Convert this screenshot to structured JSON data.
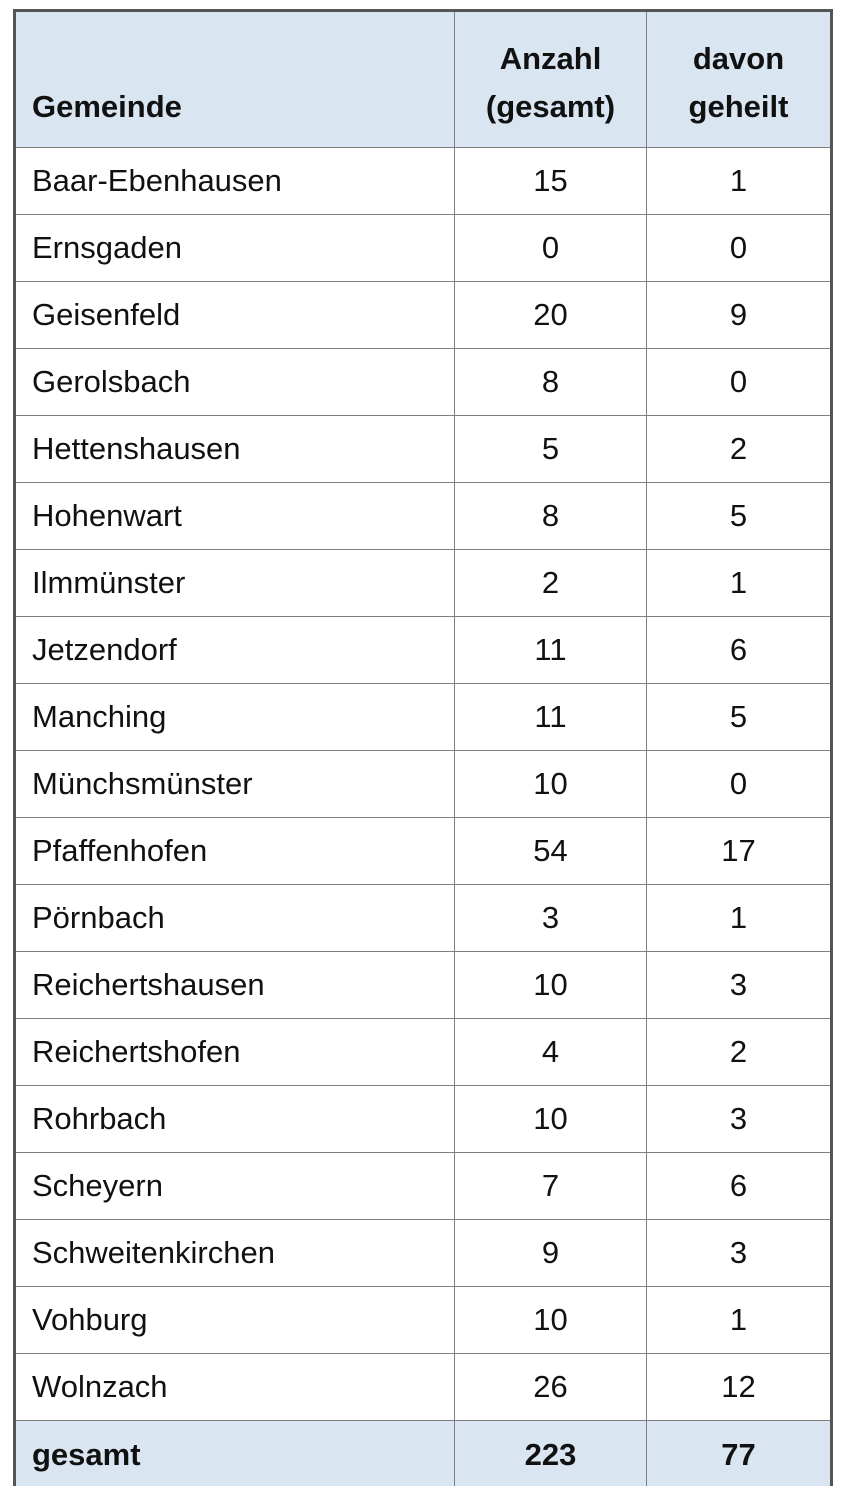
{
  "table": {
    "header": {
      "col1": "Gemeinde",
      "col2_line1": "Anzahl",
      "col2_line2": "(gesamt)",
      "col3_line1": "davon",
      "col3_line2": "geheilt"
    },
    "rows": [
      {
        "gemeinde": "Baar-Ebenhausen",
        "anzahl_gesamt": "15",
        "davon_geheilt": "1"
      },
      {
        "gemeinde": "Ernsgaden",
        "anzahl_gesamt": "0",
        "davon_geheilt": "0"
      },
      {
        "gemeinde": "Geisenfeld",
        "anzahl_gesamt": "20",
        "davon_geheilt": "9"
      },
      {
        "gemeinde": "Gerolsbach",
        "anzahl_gesamt": "8",
        "davon_geheilt": "0"
      },
      {
        "gemeinde": "Hettenshausen",
        "anzahl_gesamt": "5",
        "davon_geheilt": "2"
      },
      {
        "gemeinde": "Hohenwart",
        "anzahl_gesamt": "8",
        "davon_geheilt": "5"
      },
      {
        "gemeinde": "Ilmmünster",
        "anzahl_gesamt": "2",
        "davon_geheilt": "1"
      },
      {
        "gemeinde": "Jetzendorf",
        "anzahl_gesamt": "11",
        "davon_geheilt": "6"
      },
      {
        "gemeinde": "Manching",
        "anzahl_gesamt": "11",
        "davon_geheilt": "5"
      },
      {
        "gemeinde": "Münchsmünster",
        "anzahl_gesamt": "10",
        "davon_geheilt": "0"
      },
      {
        "gemeinde": "Pfaffenhofen",
        "anzahl_gesamt": "54",
        "davon_geheilt": "17"
      },
      {
        "gemeinde": "Pörnbach",
        "anzahl_gesamt": "3",
        "davon_geheilt": "1"
      },
      {
        "gemeinde": "Reichertshausen",
        "anzahl_gesamt": "10",
        "davon_geheilt": "3"
      },
      {
        "gemeinde": "Reichertshofen",
        "anzahl_gesamt": "4",
        "davon_geheilt": "2"
      },
      {
        "gemeinde": "Rohrbach",
        "anzahl_gesamt": "10",
        "davon_geheilt": "3"
      },
      {
        "gemeinde": "Scheyern",
        "anzahl_gesamt": "7",
        "davon_geheilt": "6"
      },
      {
        "gemeinde": "Schweitenkirchen",
        "anzahl_gesamt": "9",
        "davon_geheilt": "3"
      },
      {
        "gemeinde": "Vohburg",
        "anzahl_gesamt": "10",
        "davon_geheilt": "1"
      },
      {
        "gemeinde": "Wolnzach",
        "anzahl_gesamt": "26",
        "davon_geheilt": "12"
      }
    ],
    "footer": {
      "label": "gesamt",
      "anzahl_gesamt": "223",
      "davon_geheilt": "77"
    },
    "colors": {
      "header_bg": "#d9e5f1",
      "footer_bg": "#d9e5f1",
      "outer_border": "#555555",
      "inner_border": "#7f7f7f",
      "text": "#111111",
      "body_bg": "#ffffff"
    }
  },
  "chart_data": {
    "type": "table",
    "title": "",
    "columns": [
      "Gemeinde",
      "Anzahl (gesamt)",
      "davon geheilt"
    ],
    "categories": [
      "Baar-Ebenhausen",
      "Ernsgaden",
      "Geisenfeld",
      "Gerolsbach",
      "Hettenshausen",
      "Hohenwart",
      "Ilmmünster",
      "Jetzendorf",
      "Manching",
      "Münchsmünster",
      "Pfaffenhofen",
      "Pörnbach",
      "Reichertshausen",
      "Reichertshofen",
      "Rohrbach",
      "Scheyern",
      "Schweitenkirchen",
      "Vohburg",
      "Wolnzach"
    ],
    "series": [
      {
        "name": "Anzahl (gesamt)",
        "values": [
          15,
          0,
          20,
          8,
          5,
          8,
          2,
          11,
          11,
          10,
          54,
          3,
          10,
          4,
          10,
          7,
          9,
          10,
          26
        ]
      },
      {
        "name": "davon geheilt",
        "values": [
          1,
          0,
          9,
          0,
          2,
          5,
          1,
          6,
          5,
          0,
          17,
          1,
          3,
          2,
          3,
          6,
          3,
          1,
          12
        ]
      }
    ],
    "totals": {
      "label": "gesamt",
      "anzahl_gesamt": 223,
      "davon_geheilt": 77
    }
  }
}
